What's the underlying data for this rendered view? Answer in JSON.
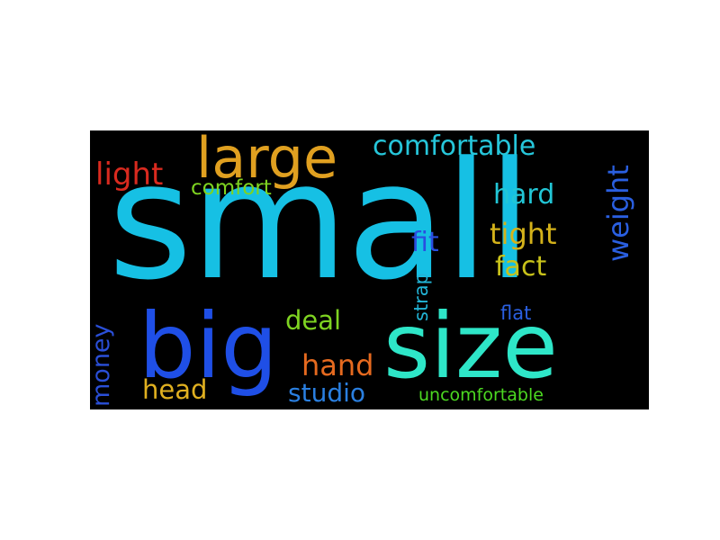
{
  "word_cloud": {
    "background": "#000000",
    "words": [
      {
        "key": "small",
        "text": "small",
        "color": "#16c0e4"
      },
      {
        "key": "size",
        "text": "size",
        "color": "#2ee6c8"
      },
      {
        "key": "big",
        "text": "big",
        "color": "#1f4fe6"
      },
      {
        "key": "large",
        "text": "large",
        "color": "#e0a020"
      },
      {
        "key": "comfortable",
        "text": "comfortable",
        "color": "#26c6da"
      },
      {
        "key": "light",
        "text": "light",
        "color": "#d92a1f"
      },
      {
        "key": "comfort",
        "text": "comfort",
        "color": "#7ed321"
      },
      {
        "key": "hard",
        "text": "hard",
        "color": "#22c6d6"
      },
      {
        "key": "weight",
        "text": "weight",
        "color": "#2a5fe0"
      },
      {
        "key": "tight",
        "text": "tight",
        "color": "#d4b21a"
      },
      {
        "key": "fit",
        "text": "fit",
        "color": "#2a4fe0"
      },
      {
        "key": "fact",
        "text": "fact",
        "color": "#c8c21a"
      },
      {
        "key": "strap",
        "text": "strap",
        "color": "#22b4d6"
      },
      {
        "key": "deal",
        "text": "deal",
        "color": "#7ed321"
      },
      {
        "key": "flat",
        "text": "flat",
        "color": "#2a5fe0"
      },
      {
        "key": "money",
        "text": "money",
        "color": "#2a4fd8"
      },
      {
        "key": "hand",
        "text": "hand",
        "color": "#e66a1f"
      },
      {
        "key": "head",
        "text": "head",
        "color": "#e0b020"
      },
      {
        "key": "studio",
        "text": "studio",
        "color": "#2a7fe0"
      },
      {
        "key": "uncomfortable",
        "text": "uncomfortable",
        "color": "#4cd921"
      }
    ]
  }
}
